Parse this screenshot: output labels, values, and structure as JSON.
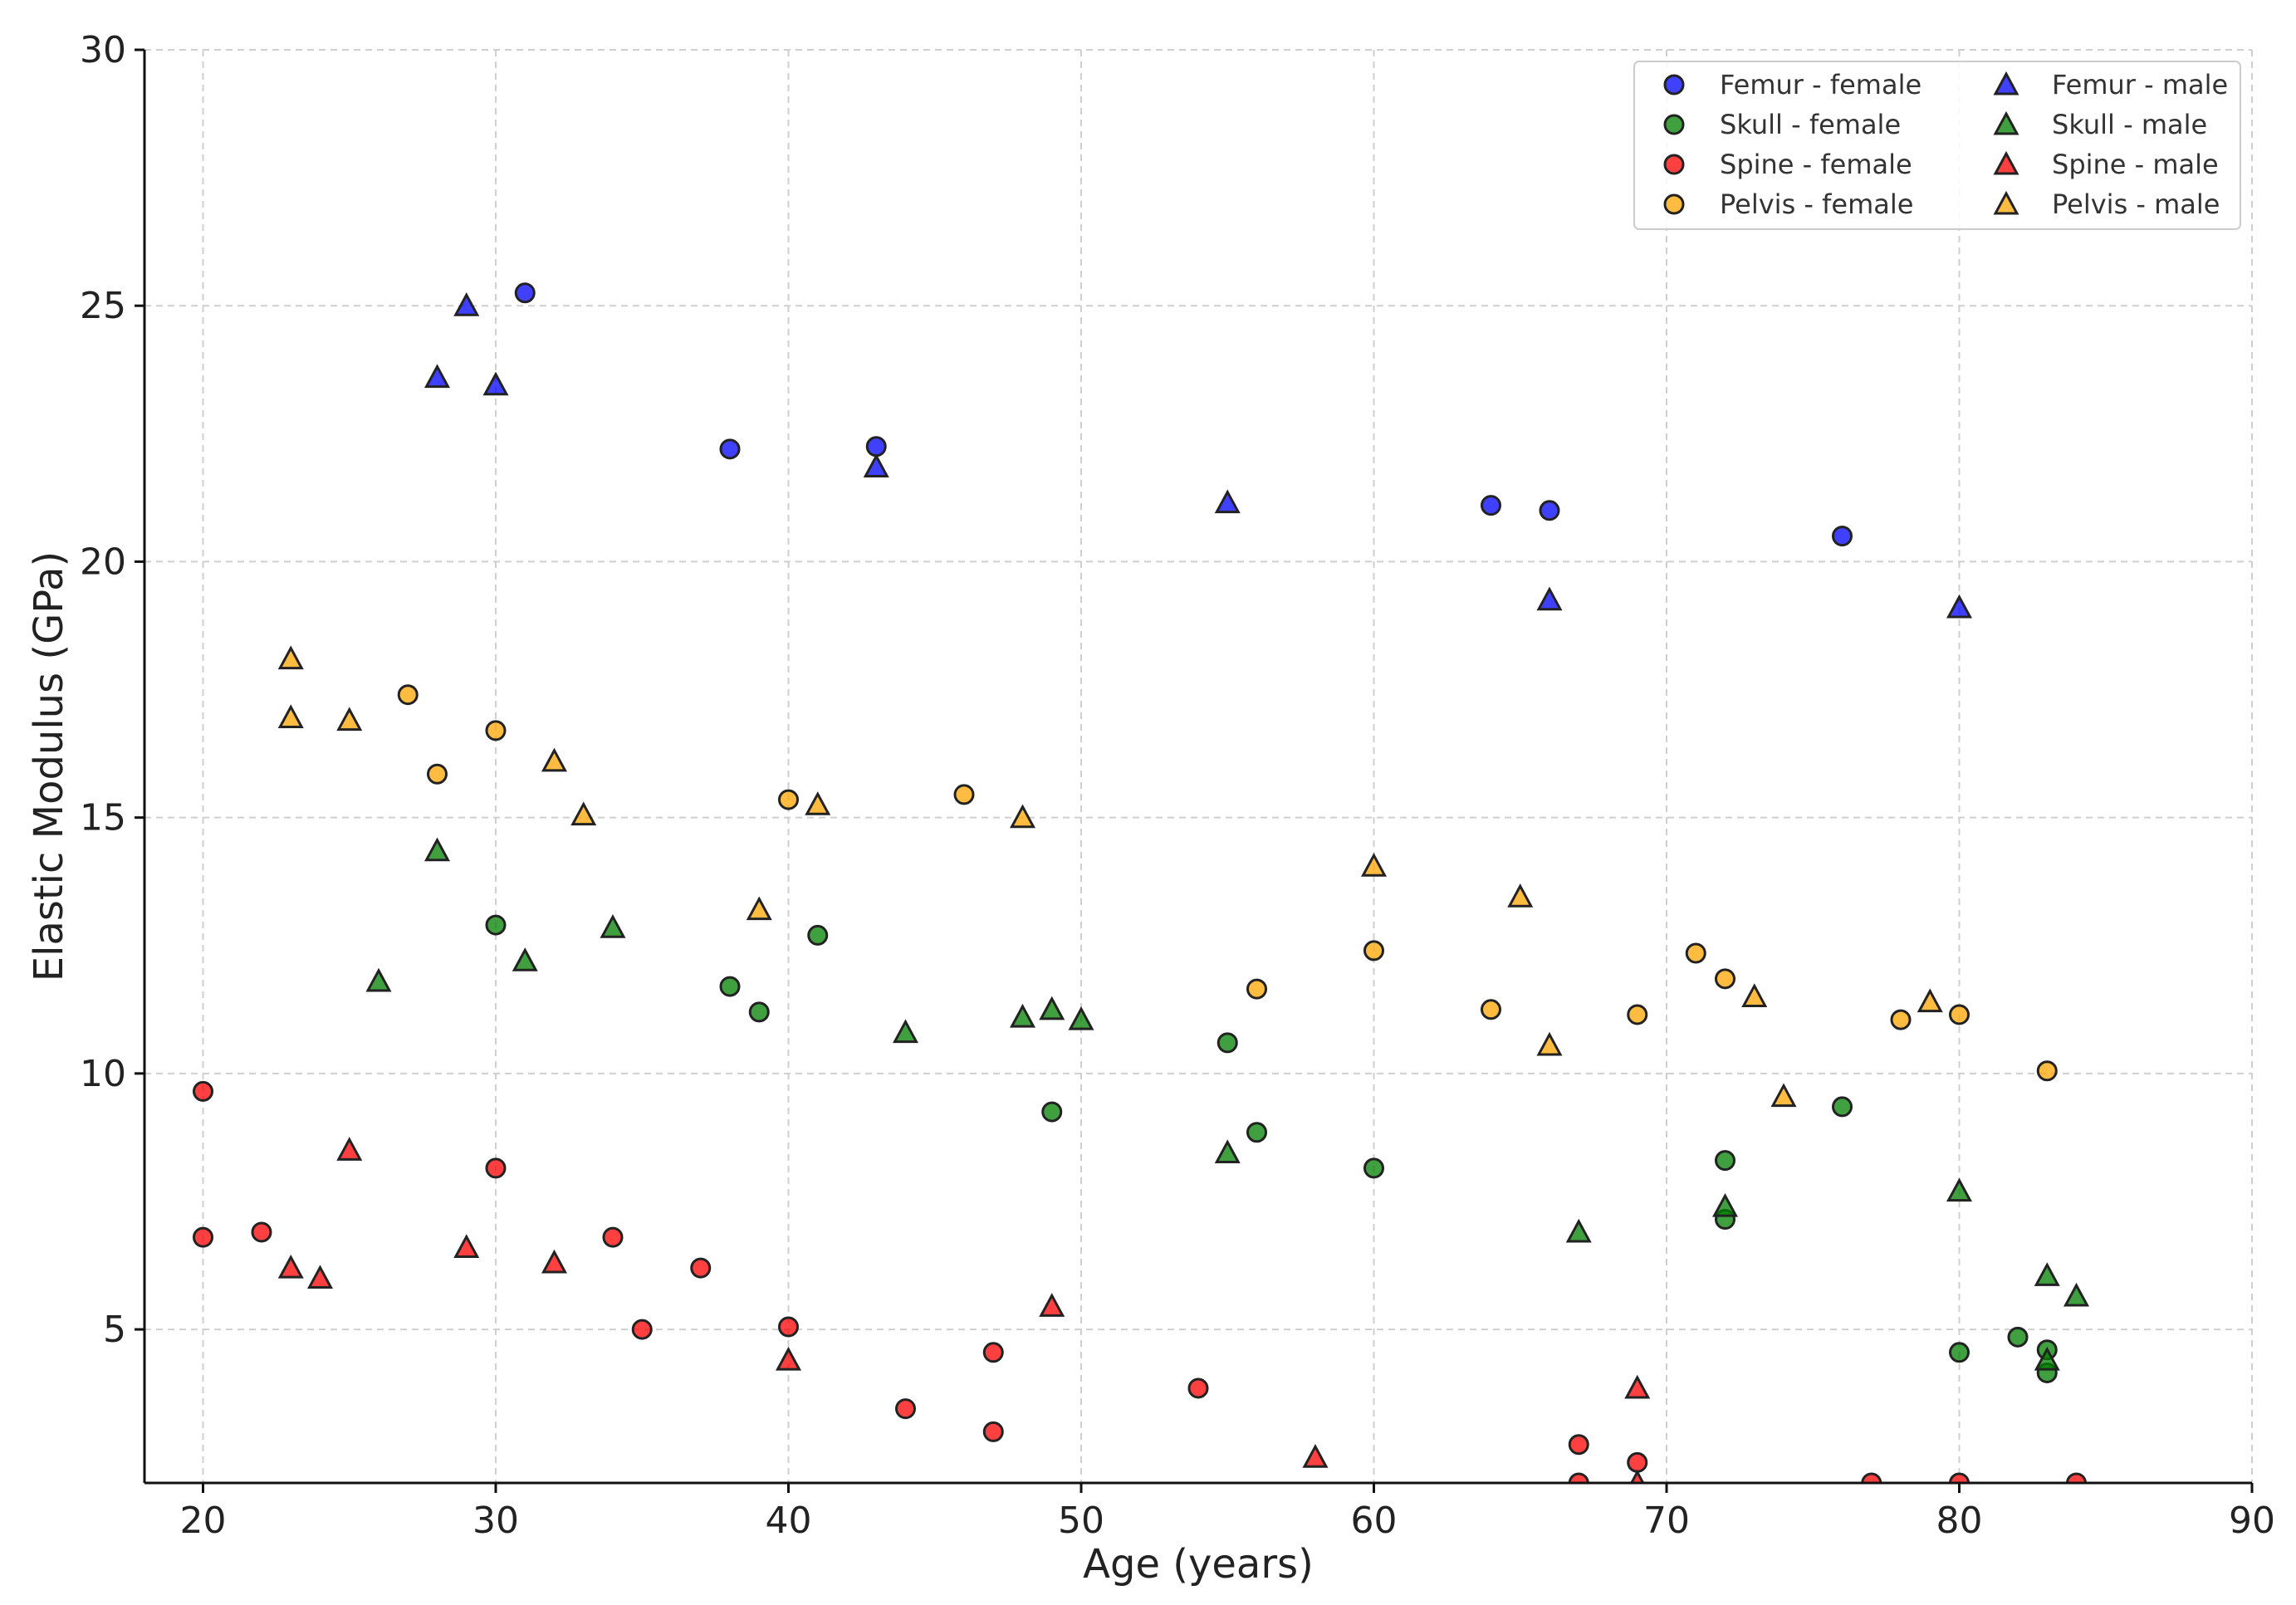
{
  "chart_data": {
    "type": "scatter",
    "title": "",
    "xlabel": "Age (years)",
    "ylabel": "Elastic Modulus (GPa)",
    "xlim": [
      18,
      90
    ],
    "ylim": [
      2,
      30
    ],
    "xticks": [
      20,
      30,
      40,
      50,
      60,
      70,
      80,
      90
    ],
    "yticks": [
      5,
      10,
      15,
      20,
      25,
      30
    ],
    "grid": true,
    "legend_position": "top-right",
    "legend_columns": 2,
    "series": [
      {
        "name": "Femur - female",
        "color": "#0000ff",
        "marker": "circle",
        "points": [
          [
            31,
            25.25
          ],
          [
            38,
            22.2
          ],
          [
            43,
            22.25
          ],
          [
            64,
            21.1
          ],
          [
            66,
            21.0
          ],
          [
            76,
            20.5
          ]
        ]
      },
      {
        "name": "Skull - female",
        "color": "#008000",
        "marker": "circle",
        "points": [
          [
            30,
            12.9
          ],
          [
            38,
            11.7
          ],
          [
            39,
            11.2
          ],
          [
            41,
            12.7
          ],
          [
            49,
            9.25
          ],
          [
            55,
            10.6
          ],
          [
            56,
            8.85
          ],
          [
            60,
            8.15
          ],
          [
            72,
            8.3
          ],
          [
            72,
            7.15
          ],
          [
            76,
            9.35
          ],
          [
            80,
            4.55
          ],
          [
            82,
            4.85
          ],
          [
            83,
            4.6
          ],
          [
            83,
            4.15
          ]
        ]
      },
      {
        "name": "Spine - female",
        "color": "#ff0000",
        "marker": "circle",
        "points": [
          [
            20,
            9.65
          ],
          [
            20,
            6.8
          ],
          [
            22,
            6.9
          ],
          [
            30,
            8.15
          ],
          [
            34,
            6.8
          ],
          [
            35,
            5.0
          ],
          [
            37,
            6.2
          ],
          [
            40,
            5.05
          ],
          [
            44,
            3.45
          ],
          [
            47,
            4.55
          ],
          [
            47,
            3.0
          ],
          [
            54,
            3.85
          ],
          [
            67,
            2.75
          ],
          [
            67,
            2.0
          ],
          [
            69,
            2.4
          ],
          [
            77,
            2.0
          ],
          [
            80,
            2.0
          ],
          [
            84,
            2.0
          ]
        ]
      },
      {
        "name": "Pelvis - female",
        "color": "#ffa500",
        "marker": "circle",
        "points": [
          [
            27,
            17.4
          ],
          [
            28,
            15.85
          ],
          [
            30,
            16.7
          ],
          [
            40,
            15.35
          ],
          [
            46,
            15.45
          ],
          [
            56,
            11.65
          ],
          [
            60,
            12.4
          ],
          [
            64,
            11.25
          ],
          [
            69,
            11.15
          ],
          [
            71,
            12.35
          ],
          [
            72,
            11.85
          ],
          [
            78,
            11.05
          ],
          [
            80,
            11.15
          ],
          [
            83,
            10.05
          ]
        ]
      },
      {
        "name": "Femur - male",
        "color": "#0000ff",
        "marker": "triangle",
        "points": [
          [
            28,
            23.6
          ],
          [
            29,
            25.0
          ],
          [
            30,
            23.45
          ],
          [
            43,
            21.85
          ],
          [
            55,
            21.15
          ],
          [
            66,
            19.25
          ],
          [
            80,
            19.1
          ]
        ]
      },
      {
        "name": "Skull - male",
        "color": "#008000",
        "marker": "triangle",
        "points": [
          [
            26,
            11.8
          ],
          [
            28,
            14.35
          ],
          [
            31,
            12.2
          ],
          [
            34,
            12.85
          ],
          [
            44,
            10.8
          ],
          [
            48,
            11.1
          ],
          [
            49,
            11.25
          ],
          [
            50,
            11.05
          ],
          [
            55,
            8.45
          ],
          [
            67,
            6.9
          ],
          [
            72,
            7.4
          ],
          [
            80,
            7.7
          ],
          [
            83,
            6.05
          ],
          [
            83,
            4.4
          ],
          [
            84,
            5.65
          ]
        ]
      },
      {
        "name": "Spine - male",
        "color": "#ff0000",
        "marker": "triangle",
        "points": [
          [
            23,
            6.2
          ],
          [
            24,
            6.0
          ],
          [
            25,
            8.5
          ],
          [
            29,
            6.6
          ],
          [
            32,
            6.3
          ],
          [
            40,
            4.4
          ],
          [
            49,
            5.45
          ],
          [
            58,
            2.5
          ],
          [
            69,
            3.85
          ],
          [
            69,
            2.0
          ]
        ]
      },
      {
        "name": "Pelvis - male",
        "color": "#ffa500",
        "marker": "triangle",
        "points": [
          [
            23,
            18.1
          ],
          [
            23,
            16.95
          ],
          [
            25,
            16.9
          ],
          [
            32,
            16.1
          ],
          [
            33,
            15.05
          ],
          [
            39,
            13.2
          ],
          [
            41,
            15.25
          ],
          [
            48,
            15.0
          ],
          [
            60,
            14.05
          ],
          [
            65,
            13.45
          ],
          [
            66,
            10.55
          ],
          [
            73,
            11.5
          ],
          [
            74,
            9.55
          ],
          [
            79,
            11.4
          ]
        ]
      }
    ]
  }
}
